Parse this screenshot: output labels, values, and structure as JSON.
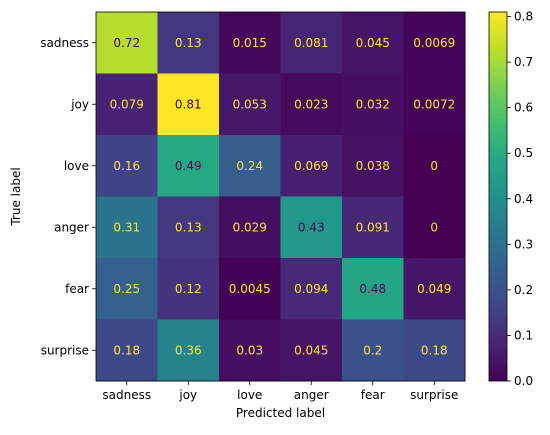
{
  "chart_data": {
    "type": "heatmap",
    "title": "",
    "xlabel": "Predicted label",
    "ylabel": "True label",
    "x_categories": [
      "sadness",
      "joy",
      "love",
      "anger",
      "fear",
      "surprise"
    ],
    "y_categories": [
      "sadness",
      "joy",
      "love",
      "anger",
      "fear",
      "surprise"
    ],
    "values": [
      [
        0.72,
        0.13,
        0.015,
        0.081,
        0.045,
        0.0069
      ],
      [
        0.079,
        0.81,
        0.053,
        0.023,
        0.032,
        0.0072
      ],
      [
        0.16,
        0.49,
        0.24,
        0.069,
        0.038,
        0
      ],
      [
        0.31,
        0.13,
        0.029,
        0.43,
        0.091,
        0
      ],
      [
        0.25,
        0.12,
        0.0045,
        0.094,
        0.48,
        0.049
      ],
      [
        0.18,
        0.36,
        0.03,
        0.045,
        0.2,
        0.18
      ]
    ],
    "value_labels": [
      [
        "0.72",
        "0.13",
        "0.015",
        "0.081",
        "0.045",
        "0.0069"
      ],
      [
        "0.079",
        "0.81",
        "0.053",
        "0.023",
        "0.032",
        "0.0072"
      ],
      [
        "0.16",
        "0.49",
        "0.24",
        "0.069",
        "0.038",
        "0"
      ],
      [
        "0.31",
        "0.13",
        "0.029",
        "0.43",
        "0.091",
        "0"
      ],
      [
        "0.25",
        "0.12",
        "0.0045",
        "0.094",
        "0.48",
        "0.049"
      ],
      [
        "0.18",
        "0.36",
        "0.03",
        "0.045",
        "0.2",
        "0.18"
      ]
    ],
    "colormap": "viridis",
    "vmin": 0,
    "vmax": 0.81,
    "colorbar_ticks": [
      "0.0",
      "0.1",
      "0.2",
      "0.3",
      "0.4",
      "0.5",
      "0.6",
      "0.7",
      "0.8"
    ],
    "colorbar_tick_values": [
      0,
      0.1,
      0.2,
      0.3,
      0.4,
      0.5,
      0.6,
      0.7,
      0.8
    ],
    "text_color_light": "#fde725",
    "text_color_dark": "#440154",
    "grid": false,
    "legend": "colorbar-right"
  }
}
